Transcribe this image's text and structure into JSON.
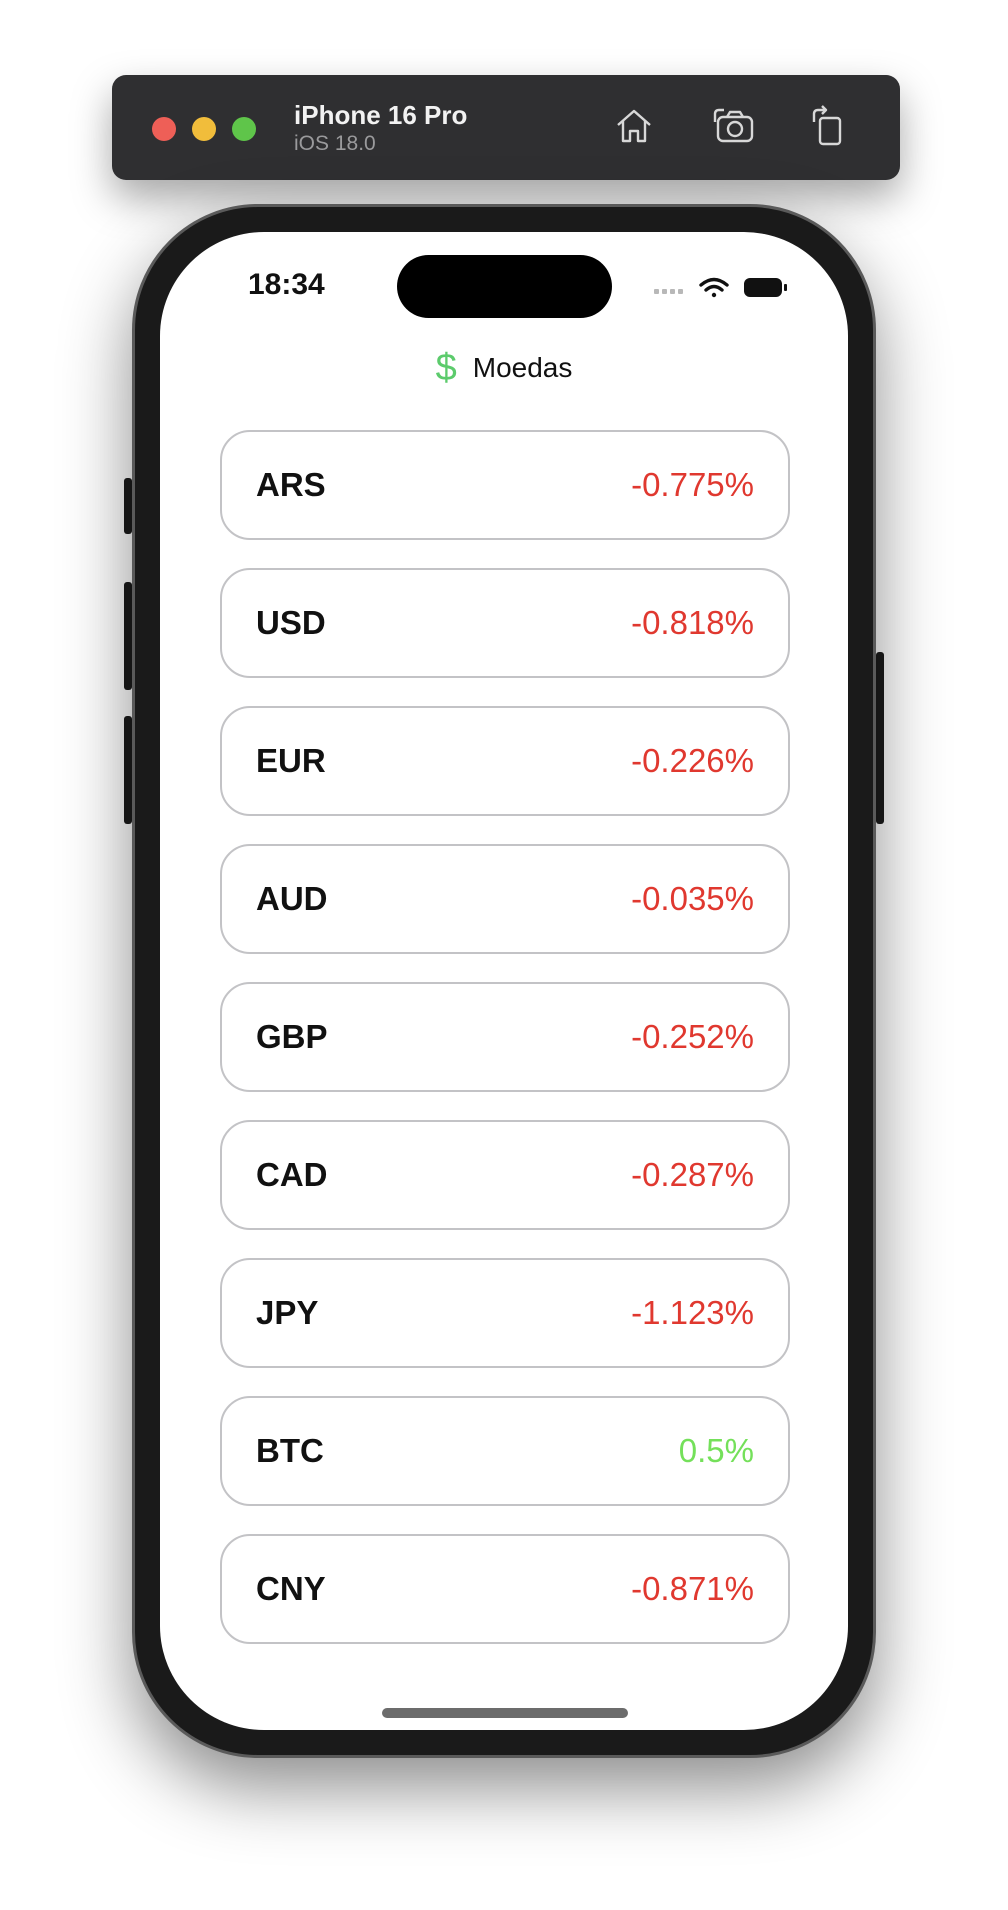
{
  "window": {
    "device_name": "iPhone 16 Pro",
    "os_version": "iOS 18.0",
    "toolbar_icons": [
      "home-icon",
      "screenshot-icon",
      "rotate-icon"
    ]
  },
  "status_bar": {
    "time": "18:34",
    "icons": [
      "signal-icon",
      "wifi-icon",
      "battery-icon"
    ]
  },
  "nav": {
    "icon": "dollar-sign-icon",
    "icon_glyph": "$",
    "title": "Moedas",
    "accent_color": "#5ccb6c"
  },
  "colors": {
    "negative": "#e0382f",
    "positive": "#74e05a"
  },
  "currencies": [
    {
      "code": "ARS",
      "change": "-0.775%",
      "trend": "negative"
    },
    {
      "code": "USD",
      "change": "-0.818%",
      "trend": "negative"
    },
    {
      "code": "EUR",
      "change": "-0.226%",
      "trend": "negative"
    },
    {
      "code": "AUD",
      "change": "-0.035%",
      "trend": "negative"
    },
    {
      "code": "GBP",
      "change": "-0.252%",
      "trend": "negative"
    },
    {
      "code": "CAD",
      "change": "-0.287%",
      "trend": "negative"
    },
    {
      "code": "JPY",
      "change": "-1.123%",
      "trend": "negative"
    },
    {
      "code": "BTC",
      "change": "0.5%",
      "trend": "positive"
    },
    {
      "code": "CNY",
      "change": "-0.871%",
      "trend": "negative"
    }
  ]
}
